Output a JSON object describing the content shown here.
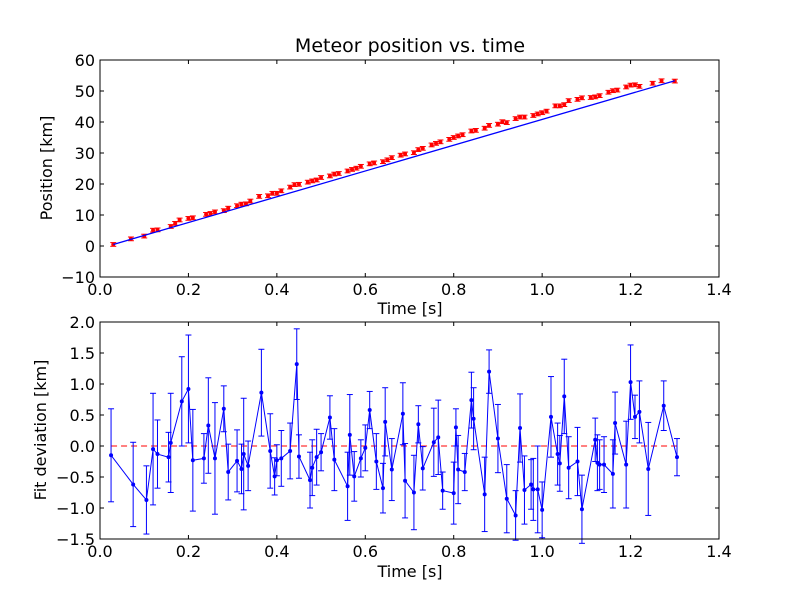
{
  "chart_data": [
    {
      "type": "line",
      "title": "Meteor position vs. time",
      "xlabel": "Time [s]",
      "ylabel": "Position [km]",
      "xlim": [
        0.0,
        1.4
      ],
      "ylim": [
        -10,
        60
      ],
      "xticks": [
        "0.0",
        "0.2",
        "0.4",
        "0.6",
        "0.8",
        "1.0",
        "1.2",
        "1.4"
      ],
      "yticks": [
        "−10",
        "0",
        "10",
        "20",
        "30",
        "40",
        "50",
        "60"
      ],
      "grid": false,
      "colors": {
        "fit": "#0000ff",
        "measurements": "#ff0000"
      },
      "series": [
        {
          "kind": "fit_line",
          "x": [
            0.03,
            1.3
          ],
          "y": [
            0.5,
            53.3
          ]
        },
        {
          "kind": "measurements_with_errorbars",
          "x": [
            0.03,
            0.07,
            0.1,
            0.12,
            0.13,
            0.16,
            0.17,
            0.18,
            0.2,
            0.21,
            0.24,
            0.25,
            0.26,
            0.28,
            0.29,
            0.31,
            0.32,
            0.33,
            0.34,
            0.36,
            0.38,
            0.39,
            0.4,
            0.41,
            0.43,
            0.44,
            0.45,
            0.47,
            0.48,
            0.49,
            0.5,
            0.52,
            0.53,
            0.54,
            0.56,
            0.57,
            0.58,
            0.59,
            0.61,
            0.62,
            0.64,
            0.65,
            0.66,
            0.68,
            0.69,
            0.71,
            0.72,
            0.73,
            0.75,
            0.76,
            0.77,
            0.79,
            0.8,
            0.81,
            0.82,
            0.84,
            0.85,
            0.87,
            0.88,
            0.9,
            0.91,
            0.92,
            0.94,
            0.95,
            0.96,
            0.98,
            0.99,
            1.0,
            1.01,
            1.03,
            1.04,
            1.05,
            1.06,
            1.08,
            1.09,
            1.11,
            1.12,
            1.13,
            1.15,
            1.16,
            1.17,
            1.19,
            1.2,
            1.21,
            1.22,
            1.25,
            1.27,
            1.3
          ],
          "y": [
            0.5,
            2.3,
            3.2,
            5.1,
            5.2,
            6.3,
            7.3,
            8.4,
            8.9,
            9.1,
            10.2,
            10.5,
            11.0,
            11.4,
            12.2,
            13.0,
            13.5,
            13.6,
            14.5,
            16.0,
            16.2,
            17.0,
            17.0,
            17.8,
            19.0,
            19.8,
            19.9,
            20.6,
            21.0,
            21.3,
            22.1,
            22.6,
            23.2,
            23.4,
            24.2,
            24.7,
            25.1,
            25.7,
            26.5,
            26.8,
            27.2,
            27.8,
            28.5,
            29.3,
            29.7,
            30.1,
            31.1,
            31.5,
            32.6,
            33.1,
            33.6,
            34.4,
            35.0,
            35.5,
            35.9,
            37.1,
            37.3,
            38.0,
            38.9,
            39.3,
            40.1,
            39.8,
            41.1,
            41.6,
            41.6,
            42.1,
            42.6,
            43.0,
            43.5,
            45.2,
            45.2,
            45.6,
            46.9,
            47.3,
            47.8,
            47.9,
            48.1,
            48.5,
            49.6,
            50.1,
            50.3,
            51.3,
            51.9,
            52.0,
            51.5,
            52.5,
            53.3,
            53.2
          ],
          "yerr": 0.6
        }
      ]
    },
    {
      "type": "line",
      "title": "",
      "xlabel": "Time [s]",
      "ylabel": "Fit deviation [km]",
      "xlim": [
        0.0,
        1.4
      ],
      "ylim": [
        -1.5,
        2.0
      ],
      "xticks": [
        "0.0",
        "0.2",
        "0.4",
        "0.6",
        "0.8",
        "1.0",
        "1.2",
        "1.4"
      ],
      "yticks": [
        "−1.5",
        "−1.0",
        "−0.5",
        "0.0",
        "0.5",
        "1.0",
        "1.5",
        "2.0"
      ],
      "grid": false,
      "colors": {
        "residuals": "#0000ff",
        "zero_line": "#ff0000"
      },
      "zero_line": 0.0,
      "series": [
        {
          "kind": "residuals_with_errorbars",
          "x": [
            0.025,
            0.075,
            0.105,
            0.12,
            0.13,
            0.155,
            0.16,
            0.185,
            0.2,
            0.21,
            0.235,
            0.245,
            0.26,
            0.28,
            0.29,
            0.31,
            0.32,
            0.325,
            0.335,
            0.365,
            0.385,
            0.395,
            0.4,
            0.41,
            0.43,
            0.445,
            0.45,
            0.475,
            0.48,
            0.49,
            0.5,
            0.52,
            0.53,
            0.56,
            0.565,
            0.575,
            0.59,
            0.6,
            0.61,
            0.625,
            0.64,
            0.645,
            0.66,
            0.685,
            0.69,
            0.71,
            0.72,
            0.73,
            0.755,
            0.765,
            0.775,
            0.8,
            0.805,
            0.81,
            0.825,
            0.84,
            0.845,
            0.87,
            0.88,
            0.9,
            0.92,
            0.94,
            0.95,
            0.96,
            0.975,
            0.98,
            0.99,
            1.0,
            1.02,
            1.035,
            1.04,
            1.05,
            1.06,
            1.08,
            1.09,
            1.12,
            1.125,
            1.13,
            1.14,
            1.16,
            1.165,
            1.19,
            1.2,
            1.21,
            1.22,
            1.24,
            1.275,
            1.305
          ],
          "y": [
            -0.15,
            -0.62,
            -0.87,
            -0.05,
            -0.13,
            -0.18,
            0.05,
            0.72,
            0.92,
            -0.23,
            -0.2,
            0.33,
            -0.2,
            0.6,
            -0.42,
            -0.24,
            -0.37,
            -0.13,
            -0.32,
            0.86,
            -0.08,
            -0.49,
            -0.23,
            -0.2,
            -0.08,
            1.32,
            -0.17,
            -0.55,
            -0.35,
            -0.18,
            -0.1,
            0.46,
            -0.22,
            -0.65,
            0.18,
            -0.49,
            -0.2,
            -0.03,
            0.58,
            -0.25,
            -0.68,
            0.39,
            -0.38,
            0.52,
            -0.56,
            -0.75,
            0.35,
            -0.36,
            0.06,
            0.14,
            -0.72,
            -0.76,
            0.3,
            -0.38,
            -0.42,
            0.74,
            0.44,
            -0.78,
            1.2,
            0.12,
            -0.85,
            -1.12,
            0.29,
            -0.71,
            -0.62,
            -0.7,
            -0.7,
            -1.03,
            0.47,
            -0.13,
            -0.28,
            0.8,
            -0.35,
            -0.25,
            -1.02,
            0.1,
            -0.27,
            -0.3,
            -0.3,
            -0.45,
            0.37,
            -0.3,
            1.03,
            0.47,
            0.55,
            -0.37,
            0.65,
            -0.18
          ],
          "yerr": [
            0.75,
            0.68,
            0.55,
            0.9,
            0.55,
            0.4,
            0.8,
            0.72,
            0.87,
            0.82,
            0.4,
            0.77,
            0.9,
            0.37,
            0.45,
            0.5,
            0.4,
            0.9,
            0.4,
            0.7,
            0.6,
            0.3,
            0.25,
            0.45,
            0.45,
            0.57,
            0.35,
            0.45,
            0.45,
            0.45,
            0.3,
            0.35,
            0.5,
            0.55,
            0.65,
            0.4,
            0.3,
            0.37,
            0.3,
            0.45,
            0.4,
            0.55,
            0.5,
            0.5,
            0.6,
            0.6,
            0.3,
            0.35,
            0.55,
            0.6,
            0.3,
            0.5,
            0.3,
            0.55,
            0.3,
            0.45,
            0.5,
            0.6,
            0.35,
            0.55,
            0.55,
            0.4,
            0.55,
            0.55,
            0.4,
            0.5,
            0.7,
            0.45,
            0.65,
            0.5,
            0.45,
            0.6,
            0.5,
            0.55,
            0.55,
            0.35,
            0.45,
            0.4,
            0.45,
            0.55,
            0.5,
            0.7,
            0.6,
            0.35,
            0.5,
            0.75,
            0.4,
            0.3
          ]
        }
      ]
    }
  ]
}
